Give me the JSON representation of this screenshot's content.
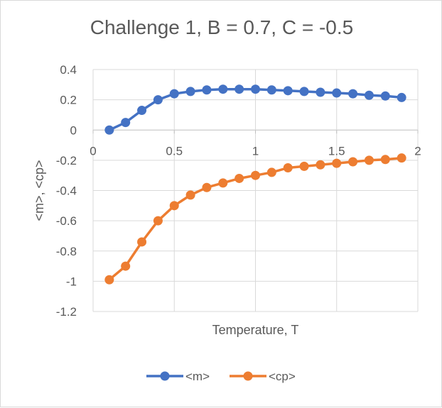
{
  "chart_data": {
    "type": "line",
    "title": "Challenge 1, B = 0.7, C = -0.5",
    "xlabel": "Temperature, T",
    "ylabel": "<m>, <cp>",
    "xlim": [
      0,
      2
    ],
    "ylim": [
      -1.2,
      0.4
    ],
    "x_ticks": [
      0,
      0.5,
      1,
      1.5,
      2
    ],
    "x_tick_labels": [
      "0",
      "0.5",
      "1",
      "1.5",
      "2"
    ],
    "y_ticks": [
      0.4,
      0.2,
      0,
      -0.2,
      -0.4,
      -0.6,
      -0.8,
      -1,
      -1.2
    ],
    "y_tick_labels": [
      "0.4",
      "0.2",
      "0",
      "-0.2",
      "-0.4",
      "-0.6",
      "-0.8",
      "-1",
      "-1.2"
    ],
    "grid": true,
    "legend_position": "bottom",
    "x": [
      0.1,
      0.2,
      0.3,
      0.4,
      0.5,
      0.6,
      0.7,
      0.8,
      0.9,
      1.0,
      1.1,
      1.2,
      1.3,
      1.4,
      1.5,
      1.6,
      1.7,
      1.8,
      1.9
    ],
    "series": [
      {
        "name": "<m>",
        "color": "#4472c4",
        "values": [
          0.0,
          0.05,
          0.13,
          0.2,
          0.24,
          0.255,
          0.265,
          0.27,
          0.27,
          0.27,
          0.265,
          0.26,
          0.255,
          0.25,
          0.245,
          0.24,
          0.23,
          0.225,
          0.215
        ]
      },
      {
        "name": "<cp>",
        "color": "#ed7d31",
        "values": [
          -0.99,
          -0.9,
          -0.74,
          -0.6,
          -0.5,
          -0.43,
          -0.38,
          -0.35,
          -0.32,
          -0.3,
          -0.28,
          -0.25,
          -0.24,
          -0.23,
          -0.22,
          -0.21,
          -0.2,
          -0.195,
          -0.185
        ]
      }
    ]
  }
}
